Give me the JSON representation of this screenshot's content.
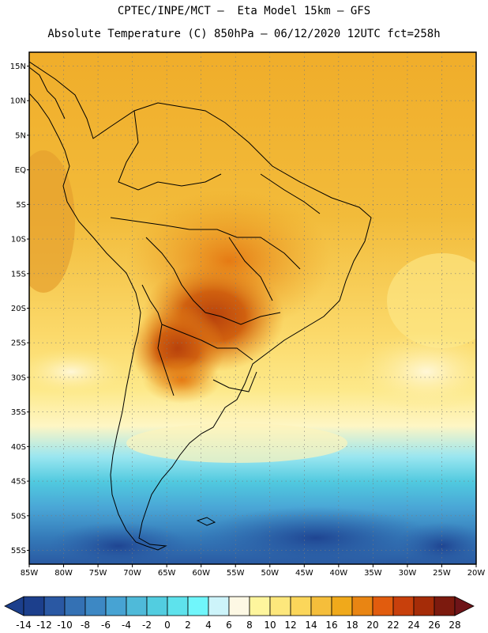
{
  "header": {
    "line1": "CPTEC/INPE/MCT –  Eta Model 15km – GFS",
    "line2": "Absolute Temperature (C) 850hPa – 06/12/2020 12UTC fct=258h"
  },
  "map": {
    "region": "South America",
    "lon_range": [
      -85,
      -20
    ],
    "lat_range": [
      -57,
      17
    ],
    "lon_labels": [
      "85W",
      "80W",
      "75W",
      "70W",
      "65W",
      "60W",
      "55W",
      "50W",
      "45W",
      "40W",
      "35W",
      "30W",
      "25W",
      "20W"
    ],
    "lat_labels": [
      "15N",
      "10N",
      "5N",
      "EQ",
      "5S",
      "10S",
      "15S",
      "20S",
      "25S",
      "30S",
      "35S",
      "40S",
      "45S",
      "50S",
      "55S"
    ]
  },
  "colorbar": {
    "ticks": [
      "-14",
      "-12",
      "-10",
      "-8",
      "-6",
      "-4",
      "-2",
      "0",
      "2",
      "4",
      "6",
      "8",
      "10",
      "12",
      "14",
      "16",
      "18",
      "20",
      "22",
      "24",
      "26",
      "28"
    ],
    "colors": [
      "#1c3f8c",
      "#2a58a3",
      "#3471b4",
      "#3d88c4",
      "#47a3d3",
      "#4fbad9",
      "#52cde0",
      "#5ee2ec",
      "#70f6fb",
      "#cdf4fa",
      "#fdf8e4",
      "#fef59d",
      "#fde77c",
      "#fbd65a",
      "#f5be3b",
      "#f0a91b",
      "#e98513",
      "#e15c0e",
      "#c8400c",
      "#a52c08",
      "#7c1a0e",
      "#6e1418"
    ]
  }
}
